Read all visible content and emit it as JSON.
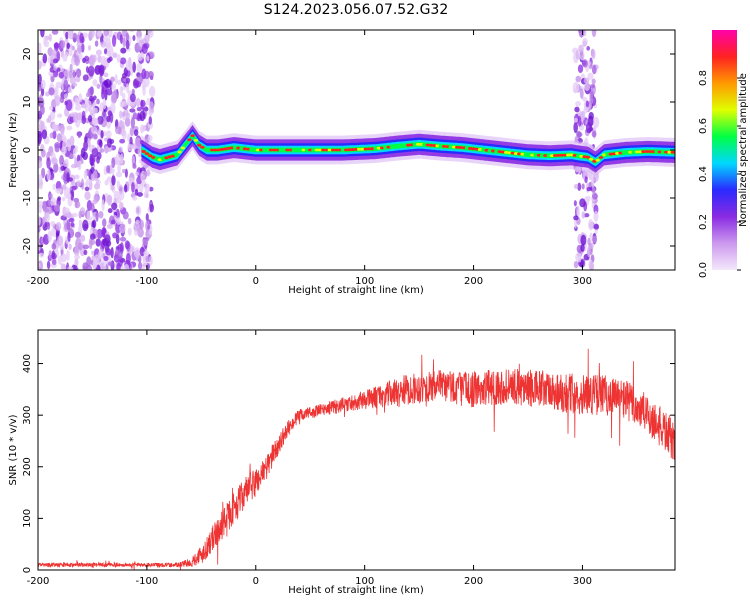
{
  "figure": {
    "title": "S124.2023.056.07.52.G32"
  },
  "chart_data": [
    {
      "type": "heatmap",
      "name": "spectrogram",
      "title": "S124.2023.056.07.52.G32",
      "xlabel": "Height of straight line (km)",
      "ylabel": "Frequency (Hz)",
      "xlim": [
        -200,
        385
      ],
      "ylim": [
        -25,
        25
      ],
      "xticks": [
        -200,
        -100,
        0,
        100,
        200,
        300
      ],
      "yticks": [
        -20,
        -10,
        0,
        10,
        20
      ],
      "colorbar": {
        "label": "Normalized spectral amplitude",
        "range": [
          0,
          1
        ],
        "ticks": [
          0.0,
          0.2,
          0.4,
          0.6,
          0.8
        ],
        "tick_labels": [
          "0.0",
          "0.2",
          "0.4",
          "0.6",
          "0.8"
        ],
        "colormap": [
          "#f4e8fb",
          "#cc99ee",
          "#8a2be2",
          "#2a2aff",
          "#00d8ff",
          "#00ff44",
          "#e0ff00",
          "#ff9900",
          "#ff2222",
          "#ff00aa"
        ]
      },
      "ridge": {
        "x": [
          -105,
          -95,
          -88,
          -80,
          -72,
          -65,
          -58,
          -52,
          -45,
          -35,
          -20,
          0,
          20,
          50,
          80,
          110,
          130,
          150,
          170,
          190,
          210,
          230,
          250,
          270,
          290,
          295,
          305,
          312,
          320,
          340,
          360,
          385
        ],
        "y": [
          0.0,
          -1.5,
          -2.0,
          -1.5,
          -1.0,
          1.0,
          3.0,
          1.0,
          0.0,
          0.0,
          0.5,
          0.0,
          0.0,
          0.0,
          0.0,
          0.3,
          0.8,
          1.2,
          0.8,
          0.5,
          0.0,
          -0.5,
          -1.0,
          -1.2,
          -1.0,
          -1.2,
          -1.5,
          -2.5,
          -1.0,
          -0.5,
          -0.3,
          -0.5
        ]
      },
      "noise_regions": [
        [
          -200,
          -95
        ],
        [
          293,
          313
        ]
      ]
    },
    {
      "type": "line",
      "name": "snr",
      "xlabel": "Height of straight line (km)",
      "ylabel": "SNR (10 * v/v)",
      "xlim": [
        -200,
        385
      ],
      "ylim": [
        0,
        465
      ],
      "xticks": [
        -200,
        -100,
        0,
        100,
        200,
        300
      ],
      "yticks": [
        0,
        100,
        200,
        300,
        400
      ],
      "series": [
        {
          "color": "#ee3333",
          "x": [
            -200,
            -150,
            -100,
            -70,
            -60,
            -50,
            -40,
            -30,
            -20,
            -10,
            0,
            10,
            20,
            30,
            40,
            60,
            80,
            100,
            120,
            140,
            160,
            180,
            200,
            220,
            240,
            260,
            280,
            300,
            320,
            340,
            360,
            380,
            385
          ],
          "y": [
            10,
            10,
            10,
            10,
            15,
            30,
            60,
            90,
            120,
            150,
            170,
            200,
            240,
            275,
            300,
            310,
            320,
            330,
            340,
            350,
            355,
            355,
            350,
            355,
            355,
            350,
            345,
            340,
            340,
            330,
            300,
            260,
            240
          ],
          "noise_amplitude": [
            4,
            4,
            4,
            5,
            8,
            20,
            25,
            28,
            30,
            30,
            30,
            25,
            20,
            15,
            12,
            12,
            15,
            18,
            25,
            30,
            30,
            35,
            35,
            35,
            35,
            38,
            40,
            40,
            40,
            40,
            40,
            40,
            40
          ]
        }
      ]
    }
  ]
}
